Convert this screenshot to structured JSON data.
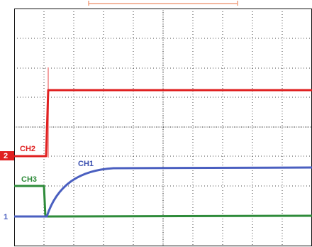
{
  "labels": {
    "ch1": "CH1",
    "ch2": "CH2",
    "ch3": "CH3"
  },
  "markers": {
    "ch2": "2",
    "ch1": "1"
  }
}
